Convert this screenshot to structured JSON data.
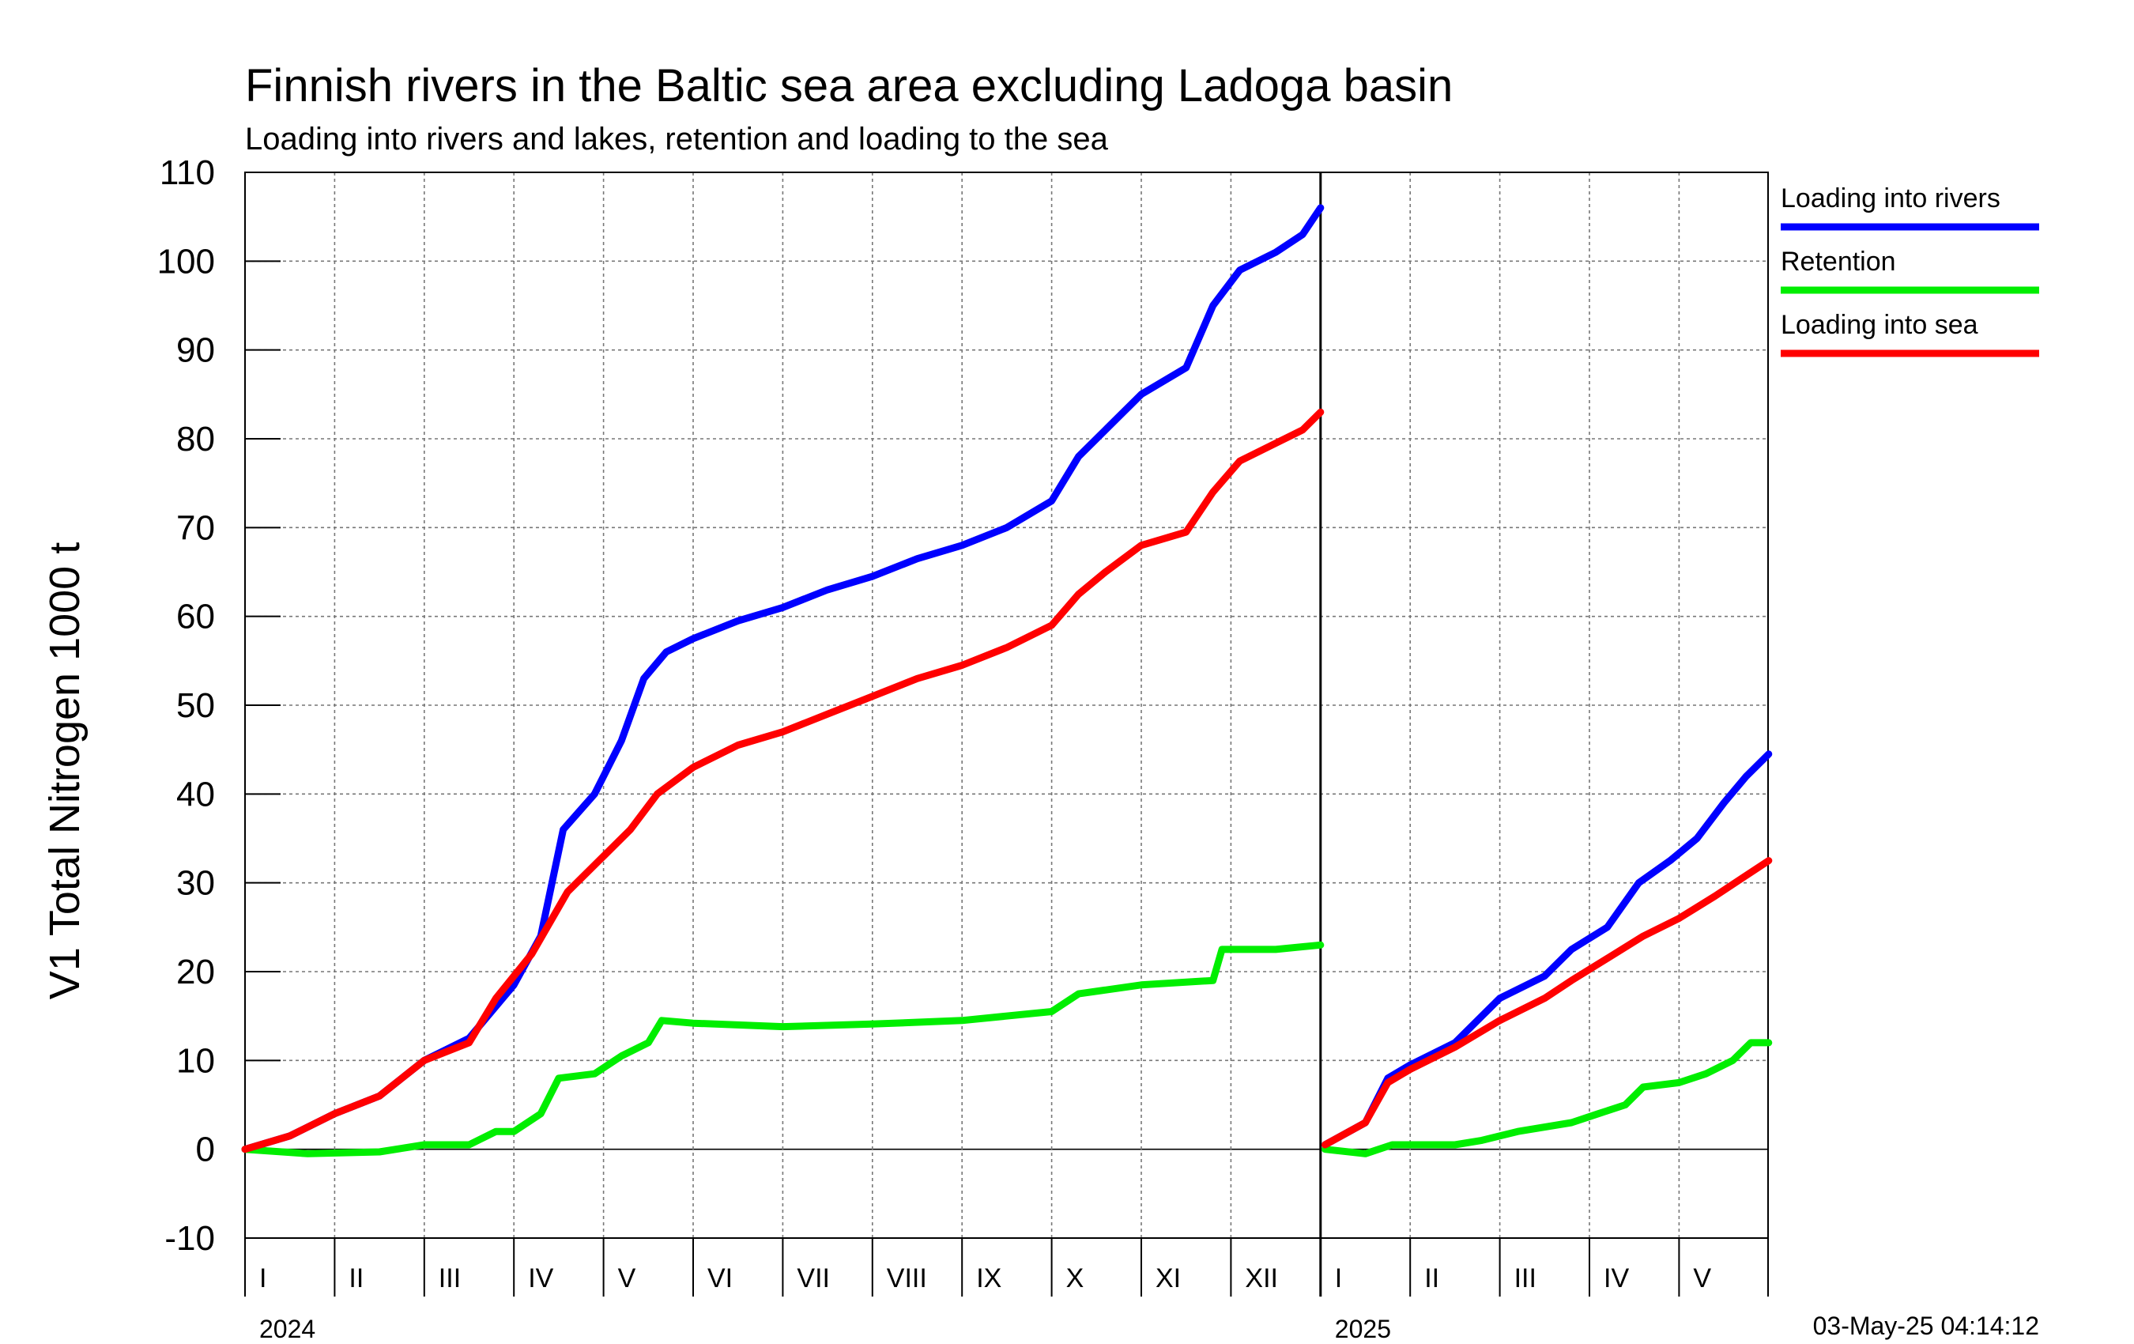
{
  "chart_data": {
    "type": "line",
    "title": "Finnish rivers in the Baltic sea area excluding Ladoga basin",
    "subtitle": "Loading into rivers and lakes, retention and loading to the sea",
    "ylabel": "V1 Total Nitrogen 1000 t",
    "ylim": [
      -10,
      110
    ],
    "yticks": [
      -10,
      0,
      10,
      20,
      30,
      40,
      50,
      60,
      70,
      80,
      90,
      100,
      110
    ],
    "grid": true,
    "legend_position": "right",
    "timestamp": "03-May-25 04:14:12",
    "years": [
      {
        "label": "2024",
        "start_month_index": 0
      },
      {
        "label": "2025",
        "start_month_index": 12
      }
    ],
    "month_labels": [
      "I",
      "II",
      "III",
      "IV",
      "V",
      "VI",
      "VII",
      "VIII",
      "IX",
      "X",
      "XI",
      "XII",
      "I",
      "II",
      "III",
      "IV",
      "V"
    ],
    "x_unit": "months since start of 2024",
    "series": [
      {
        "name": "Loading into rivers",
        "color": "#0000ff",
        "segments": [
          [
            [
              0,
              0
            ],
            [
              0.5,
              1.5
            ],
            [
              1.0,
              4
            ],
            [
              1.5,
              6
            ],
            [
              2.0,
              10
            ],
            [
              2.5,
              12.5
            ],
            [
              3.0,
              18.5
            ],
            [
              3.3,
              24
            ],
            [
              3.55,
              36
            ],
            [
              3.9,
              40
            ],
            [
              4.2,
              46
            ],
            [
              4.45,
              53
            ],
            [
              4.7,
              56
            ],
            [
              5.0,
              57.5
            ],
            [
              5.5,
              59.5
            ],
            [
              6.0,
              61
            ],
            [
              6.5,
              63
            ],
            [
              7.0,
              64.5
            ],
            [
              7.5,
              66.5
            ],
            [
              8.0,
              68
            ],
            [
              8.5,
              70
            ],
            [
              9.0,
              73
            ],
            [
              9.3,
              78
            ],
            [
              9.6,
              81
            ],
            [
              10.0,
              85
            ],
            [
              10.5,
              88
            ],
            [
              10.8,
              95
            ],
            [
              11.1,
              99
            ],
            [
              11.5,
              101
            ],
            [
              11.8,
              103
            ],
            [
              12.0,
              106
            ]
          ],
          [
            [
              12.05,
              0.5
            ],
            [
              12.5,
              3
            ],
            [
              12.75,
              8
            ],
            [
              13.0,
              9.5
            ],
            [
              13.5,
              12
            ],
            [
              14.0,
              17
            ],
            [
              14.5,
              19.5
            ],
            [
              14.8,
              22.5
            ],
            [
              15.2,
              25
            ],
            [
              15.55,
              30
            ],
            [
              15.9,
              32.5
            ],
            [
              16.2,
              35
            ],
            [
              16.5,
              39
            ],
            [
              16.75,
              42
            ],
            [
              17.0,
              44.5
            ]
          ]
        ]
      },
      {
        "name": "Retention",
        "color": "#00ee00",
        "segments": [
          [
            [
              0,
              0
            ],
            [
              0.7,
              -0.5
            ],
            [
              1.5,
              -0.3
            ],
            [
              2.0,
              0.5
            ],
            [
              2.5,
              0.5
            ],
            [
              2.8,
              2
            ],
            [
              3.0,
              2
            ],
            [
              3.3,
              4
            ],
            [
              3.5,
              8
            ],
            [
              3.9,
              8.5
            ],
            [
              4.2,
              10.5
            ],
            [
              4.5,
              12
            ],
            [
              4.65,
              14.5
            ],
            [
              5.0,
              14.2
            ],
            [
              6.0,
              13.8
            ],
            [
              7.0,
              14.1
            ],
            [
              8.0,
              14.5
            ],
            [
              9.0,
              15.5
            ],
            [
              9.3,
              17.5
            ],
            [
              10.0,
              18.5
            ],
            [
              10.8,
              19
            ],
            [
              10.9,
              22.5
            ],
            [
              11.5,
              22.5
            ],
            [
              12.0,
              23
            ]
          ],
          [
            [
              12.05,
              0
            ],
            [
              12.5,
              -0.5
            ],
            [
              12.8,
              0.5
            ],
            [
              13.5,
              0.5
            ],
            [
              13.8,
              1
            ],
            [
              14.2,
              2
            ],
            [
              14.8,
              3
            ],
            [
              15.1,
              4
            ],
            [
              15.4,
              5
            ],
            [
              15.6,
              7
            ],
            [
              16.0,
              7.5
            ],
            [
              16.3,
              8.5
            ],
            [
              16.6,
              10
            ],
            [
              16.8,
              12
            ],
            [
              17.0,
              12
            ]
          ]
        ]
      },
      {
        "name": "Loading into sea",
        "color": "#ff0000",
        "segments": [
          [
            [
              0,
              0
            ],
            [
              0.5,
              1.5
            ],
            [
              1.0,
              4
            ],
            [
              1.5,
              6
            ],
            [
              2.0,
              10
            ],
            [
              2.5,
              12
            ],
            [
              2.8,
              17
            ],
            [
              3.2,
              22
            ],
            [
              3.6,
              29
            ],
            [
              4.0,
              33
            ],
            [
              4.3,
              36
            ],
            [
              4.6,
              40
            ],
            [
              5.0,
              43
            ],
            [
              5.5,
              45.5
            ],
            [
              6.0,
              47
            ],
            [
              6.5,
              49
            ],
            [
              7.0,
              51
            ],
            [
              7.5,
              53
            ],
            [
              8.0,
              54.5
            ],
            [
              8.5,
              56.5
            ],
            [
              9.0,
              59
            ],
            [
              9.3,
              62.5
            ],
            [
              9.6,
              65
            ],
            [
              10.0,
              68
            ],
            [
              10.5,
              69.5
            ],
            [
              10.8,
              74
            ],
            [
              11.1,
              77.5
            ],
            [
              11.5,
              79.5
            ],
            [
              11.8,
              81
            ],
            [
              12.0,
              83
            ]
          ],
          [
            [
              12.05,
              0.5
            ],
            [
              12.5,
              3
            ],
            [
              12.75,
              7.5
            ],
            [
              13.0,
              9
            ],
            [
              13.5,
              11.5
            ],
            [
              14.0,
              14.5
            ],
            [
              14.5,
              17
            ],
            [
              14.8,
              19
            ],
            [
              15.2,
              21.5
            ],
            [
              15.6,
              24
            ],
            [
              16.0,
              26
            ],
            [
              16.4,
              28.5
            ],
            [
              16.7,
              30.5
            ],
            [
              17.0,
              32.5
            ]
          ]
        ]
      }
    ]
  }
}
